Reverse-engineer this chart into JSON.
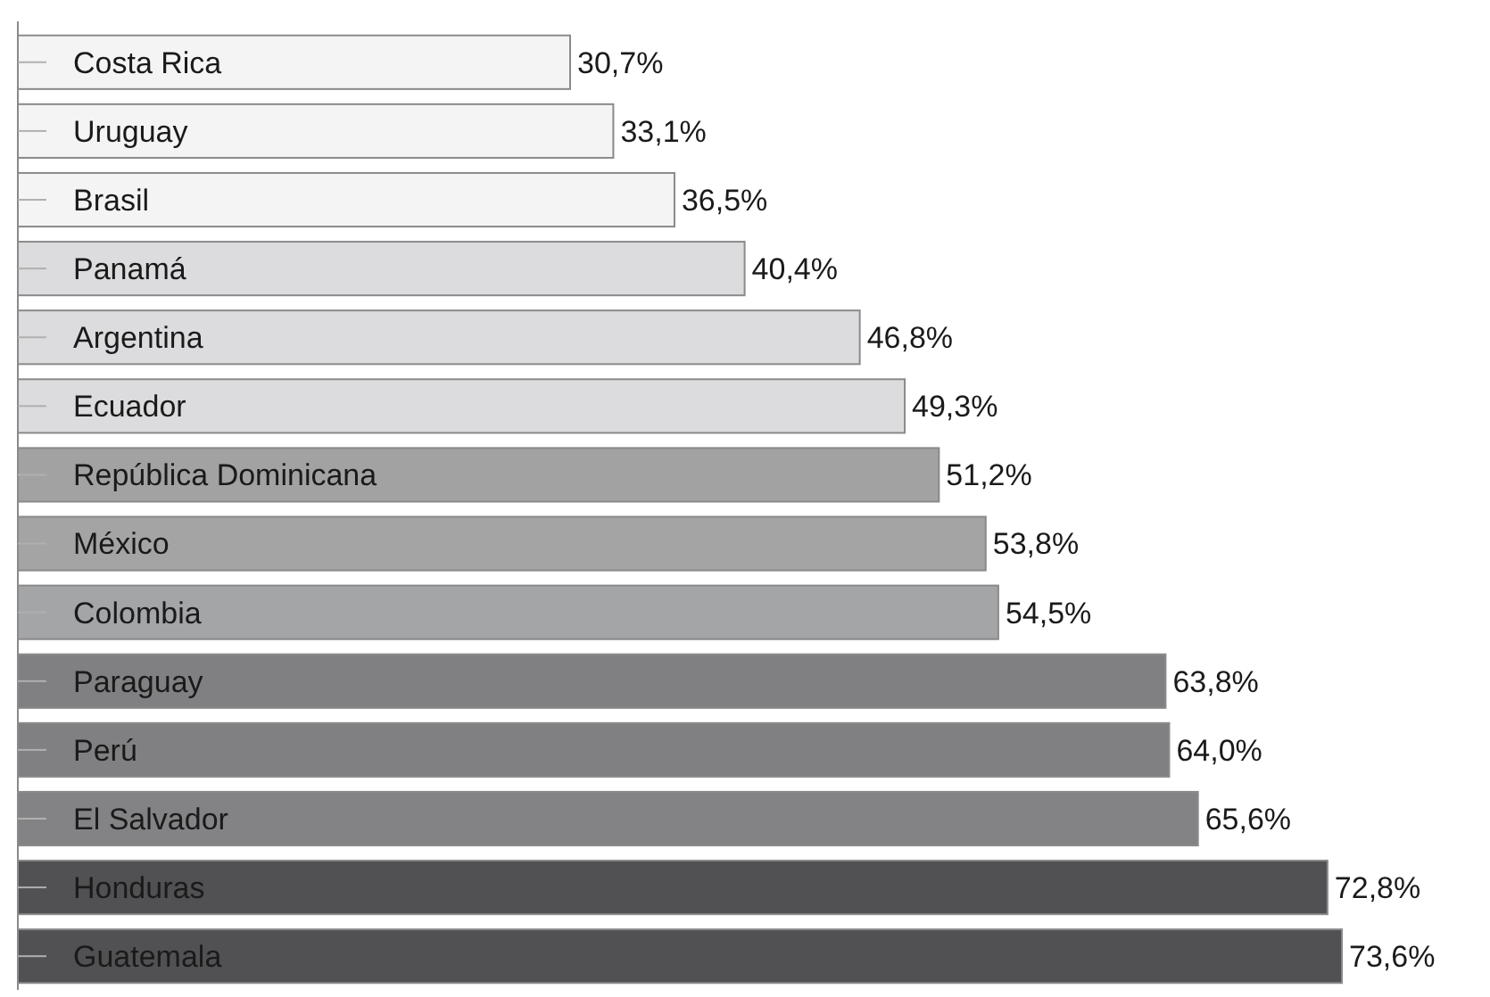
{
  "chart_data": {
    "type": "bar",
    "orientation": "horizontal",
    "categories": [
      "Costa Rica",
      "Uruguay",
      "Brasil",
      "Panamá",
      "Argentina",
      "Ecuador",
      "República Dominicana",
      "México",
      "Colombia",
      "Paraguay",
      "Perú",
      "El Salvador",
      "Honduras",
      "Guatemala"
    ],
    "values": [
      30.7,
      33.1,
      36.5,
      40.4,
      46.8,
      49.3,
      51.2,
      53.8,
      54.5,
      63.8,
      64.0,
      65.6,
      72.8,
      73.6
    ],
    "colors": [
      "#f4f4f4",
      "#f4f4f4",
      "#f4f4f4",
      "#dcdcde",
      "#dcdcde",
      "#dcdcde",
      "#a2a2a2",
      "#a4a4a4",
      "#a4a5a7",
      "#808082",
      "#808082",
      "#838385",
      "#515153",
      "#515153"
    ],
    "value_labels": [
      "30,7%",
      "33,1%",
      "36,5%",
      "40,4%",
      "46,8%",
      "49,3%",
      "51,2%",
      "53,8%",
      "54,5%",
      "63,8%",
      "64,0%",
      "65,6%",
      "72,8%",
      "73,6%"
    ]
  }
}
